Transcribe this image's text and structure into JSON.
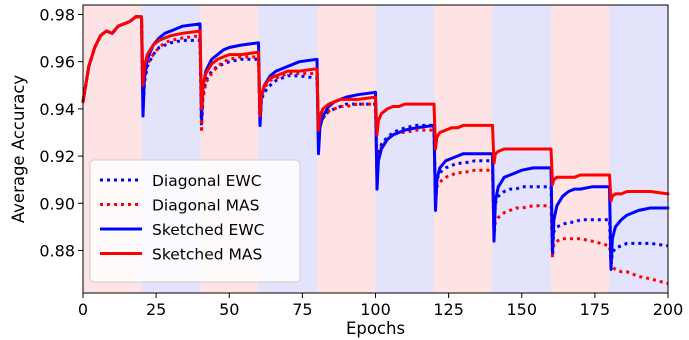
{
  "chart_data": {
    "type": "line",
    "xlabel": "Epochs",
    "ylabel": "Average Accuracy",
    "xlim": [
      0,
      200
    ],
    "ylim": [
      0.862,
      0.984
    ],
    "xticks": [
      0,
      25,
      50,
      75,
      100,
      125,
      150,
      175,
      200
    ],
    "xtick_labels": [
      "0",
      "25",
      "50",
      "75",
      "100",
      "125",
      "150",
      "175",
      "200"
    ],
    "yticks": [
      0.88,
      0.9,
      0.92,
      0.94,
      0.96,
      0.98
    ],
    "ytick_labels": [
      "0.88",
      "0.90",
      "0.92",
      "0.94",
      "0.96",
      "0.98"
    ],
    "task_bands": {
      "boundaries": [
        0,
        20,
        40,
        60,
        80,
        100,
        120,
        140,
        160,
        180,
        200
      ],
      "colors": [
        "#fde3e3",
        "#e3e3fb"
      ]
    },
    "legend": {
      "position": "lower-left"
    },
    "series": [
      {
        "name": "Diagonal EWC",
        "color": "#0000ff",
        "style": "dotted",
        "x": [
          0,
          2,
          4,
          6,
          8,
          10,
          12,
          14,
          16,
          18,
          20,
          20.5,
          21,
          22,
          24,
          26,
          28,
          30,
          34,
          40,
          40.5,
          41,
          42,
          44,
          46,
          48,
          50,
          54,
          60,
          60.5,
          61,
          62,
          64,
          66,
          68,
          70,
          74,
          80,
          80.5,
          81,
          82,
          84,
          86,
          88,
          90,
          94,
          100,
          100.5,
          101,
          102,
          104,
          106,
          108,
          110,
          114,
          120,
          120.5,
          121,
          122,
          124,
          126,
          128,
          130,
          134,
          140,
          140.5,
          141,
          142,
          144,
          146,
          148,
          150,
          154,
          160,
          160.5,
          161,
          162,
          164,
          166,
          168,
          170,
          174,
          180,
          180.5,
          181,
          182,
          184,
          186,
          188,
          190,
          194,
          200
        ],
        "y": [
          0.943,
          0.958,
          0.966,
          0.971,
          0.973,
          0.972,
          0.975,
          0.976,
          0.977,
          0.979,
          0.979,
          0.94,
          0.951,
          0.958,
          0.963,
          0.966,
          0.967,
          0.968,
          0.969,
          0.969,
          0.933,
          0.946,
          0.952,
          0.956,
          0.958,
          0.959,
          0.96,
          0.961,
          0.961,
          0.933,
          0.944,
          0.947,
          0.95,
          0.952,
          0.953,
          0.954,
          0.954,
          0.953,
          0.924,
          0.933,
          0.936,
          0.939,
          0.94,
          0.941,
          0.942,
          0.942,
          0.942,
          0.91,
          0.921,
          0.925,
          0.928,
          0.93,
          0.931,
          0.932,
          0.933,
          0.933,
          0.899,
          0.91,
          0.913,
          0.915,
          0.916,
          0.917,
          0.917,
          0.918,
          0.918,
          0.888,
          0.9,
          0.903,
          0.905,
          0.906,
          0.906,
          0.907,
          0.907,
          0.907,
          0.881,
          0.888,
          0.89,
          0.891,
          0.892,
          0.892,
          0.893,
          0.893,
          0.893,
          0.874,
          0.879,
          0.881,
          0.882,
          0.883,
          0.883,
          0.883,
          0.883,
          0.882
        ]
      },
      {
        "name": "Diagonal MAS",
        "color": "#ff0000",
        "style": "dotted",
        "x": [
          0,
          2,
          4,
          6,
          8,
          10,
          12,
          14,
          16,
          18,
          20,
          20.5,
          21,
          22,
          24,
          26,
          28,
          30,
          34,
          40,
          40.5,
          41,
          42,
          44,
          46,
          48,
          50,
          54,
          60,
          60.5,
          61,
          62,
          64,
          66,
          68,
          70,
          74,
          80,
          80.5,
          81,
          82,
          84,
          86,
          88,
          90,
          94,
          100,
          100.5,
          101,
          102,
          104,
          106,
          108,
          110,
          114,
          120,
          120.5,
          121,
          122,
          124,
          126,
          128,
          130,
          134,
          140,
          140.5,
          141,
          142,
          144,
          146,
          148,
          150,
          154,
          160,
          160.5,
          161,
          162,
          164,
          166,
          168,
          170,
          174,
          180,
          180.5,
          181,
          182,
          184,
          186,
          188,
          190,
          194,
          200
        ],
        "y": [
          0.943,
          0.958,
          0.966,
          0.971,
          0.973,
          0.972,
          0.975,
          0.976,
          0.977,
          0.979,
          0.979,
          0.944,
          0.953,
          0.959,
          0.963,
          0.966,
          0.968,
          0.969,
          0.97,
          0.971,
          0.93,
          0.944,
          0.951,
          0.955,
          0.958,
          0.96,
          0.961,
          0.962,
          0.962,
          0.938,
          0.945,
          0.949,
          0.952,
          0.953,
          0.954,
          0.955,
          0.955,
          0.955,
          0.925,
          0.933,
          0.936,
          0.939,
          0.94,
          0.941,
          0.941,
          0.942,
          0.942,
          0.912,
          0.921,
          0.924,
          0.927,
          0.929,
          0.93,
          0.93,
          0.931,
          0.931,
          0.902,
          0.907,
          0.909,
          0.911,
          0.912,
          0.913,
          0.913,
          0.914,
          0.914,
          0.886,
          0.892,
          0.894,
          0.896,
          0.897,
          0.898,
          0.898,
          0.899,
          0.899,
          0.877,
          0.883,
          0.884,
          0.885,
          0.885,
          0.885,
          0.885,
          0.884,
          0.882,
          0.875,
          0.873,
          0.872,
          0.871,
          0.871,
          0.87,
          0.869,
          0.868,
          0.866
        ]
      },
      {
        "name": "Sketched EWC",
        "color": "#0000ff",
        "style": "solid",
        "x": [
          0,
          2,
          4,
          6,
          8,
          10,
          12,
          14,
          16,
          18,
          20,
          20.5,
          21,
          22,
          24,
          26,
          28,
          30,
          34,
          40,
          40.5,
          41,
          42,
          44,
          46,
          48,
          50,
          54,
          60,
          60.5,
          61,
          62,
          64,
          66,
          68,
          70,
          74,
          80,
          80.5,
          81,
          82,
          84,
          86,
          88,
          90,
          94,
          100,
          100.5,
          101,
          102,
          104,
          106,
          108,
          110,
          114,
          120,
          120.5,
          121,
          122,
          124,
          126,
          128,
          130,
          134,
          140,
          140.5,
          141,
          142,
          144,
          146,
          148,
          150,
          154,
          160,
          160.5,
          161,
          162,
          164,
          166,
          168,
          170,
          174,
          180,
          180.5,
          181,
          182,
          184,
          186,
          188,
          190,
          194,
          200
        ],
        "y": [
          0.943,
          0.958,
          0.966,
          0.971,
          0.973,
          0.972,
          0.975,
          0.976,
          0.977,
          0.979,
          0.979,
          0.937,
          0.953,
          0.961,
          0.967,
          0.97,
          0.972,
          0.973,
          0.975,
          0.976,
          0.936,
          0.949,
          0.956,
          0.961,
          0.963,
          0.965,
          0.966,
          0.967,
          0.968,
          0.933,
          0.945,
          0.95,
          0.954,
          0.956,
          0.957,
          0.958,
          0.96,
          0.961,
          0.921,
          0.932,
          0.937,
          0.941,
          0.943,
          0.944,
          0.945,
          0.946,
          0.947,
          0.906,
          0.918,
          0.923,
          0.927,
          0.929,
          0.93,
          0.931,
          0.932,
          0.933,
          0.897,
          0.91,
          0.915,
          0.918,
          0.919,
          0.92,
          0.921,
          0.921,
          0.921,
          0.884,
          0.901,
          0.907,
          0.911,
          0.912,
          0.913,
          0.914,
          0.915,
          0.915,
          0.879,
          0.893,
          0.899,
          0.903,
          0.905,
          0.906,
          0.906,
          0.907,
          0.907,
          0.872,
          0.885,
          0.89,
          0.893,
          0.895,
          0.896,
          0.897,
          0.898,
          0.898
        ]
      },
      {
        "name": "Sketched MAS",
        "color": "#ff0000",
        "style": "solid",
        "x": [
          0,
          2,
          4,
          6,
          8,
          10,
          12,
          14,
          16,
          18,
          20,
          20.5,
          21,
          22,
          24,
          26,
          28,
          30,
          34,
          40,
          40.5,
          41,
          42,
          44,
          46,
          48,
          50,
          54,
          60,
          60.5,
          61,
          62,
          64,
          66,
          68,
          70,
          74,
          80,
          80.5,
          81,
          82,
          84,
          86,
          88,
          90,
          94,
          100,
          100.5,
          101,
          102,
          104,
          106,
          108,
          110,
          114,
          120,
          120.5,
          121,
          122,
          124,
          126,
          128,
          130,
          134,
          140,
          140.5,
          141,
          142,
          144,
          146,
          148,
          150,
          154,
          160,
          160.5,
          161,
          162,
          164,
          166,
          168,
          170,
          174,
          180,
          180.5,
          181,
          182,
          184,
          186,
          188,
          190,
          194,
          200
        ],
        "y": [
          0.943,
          0.958,
          0.966,
          0.971,
          0.973,
          0.972,
          0.975,
          0.976,
          0.977,
          0.979,
          0.979,
          0.95,
          0.958,
          0.963,
          0.967,
          0.969,
          0.97,
          0.971,
          0.972,
          0.973,
          0.94,
          0.95,
          0.955,
          0.959,
          0.961,
          0.962,
          0.963,
          0.963,
          0.964,
          0.937,
          0.946,
          0.95,
          0.953,
          0.954,
          0.955,
          0.956,
          0.956,
          0.957,
          0.931,
          0.937,
          0.94,
          0.942,
          0.943,
          0.944,
          0.944,
          0.944,
          0.945,
          0.929,
          0.935,
          0.938,
          0.94,
          0.941,
          0.941,
          0.942,
          0.942,
          0.942,
          0.923,
          0.928,
          0.93,
          0.931,
          0.932,
          0.932,
          0.933,
          0.933,
          0.933,
          0.917,
          0.921,
          0.922,
          0.923,
          0.923,
          0.923,
          0.923,
          0.923,
          0.923,
          0.908,
          0.91,
          0.911,
          0.911,
          0.911,
          0.911,
          0.912,
          0.912,
          0.912,
          0.901,
          0.903,
          0.904,
          0.904,
          0.905,
          0.905,
          0.905,
          0.905,
          0.904
        ]
      }
    ]
  }
}
